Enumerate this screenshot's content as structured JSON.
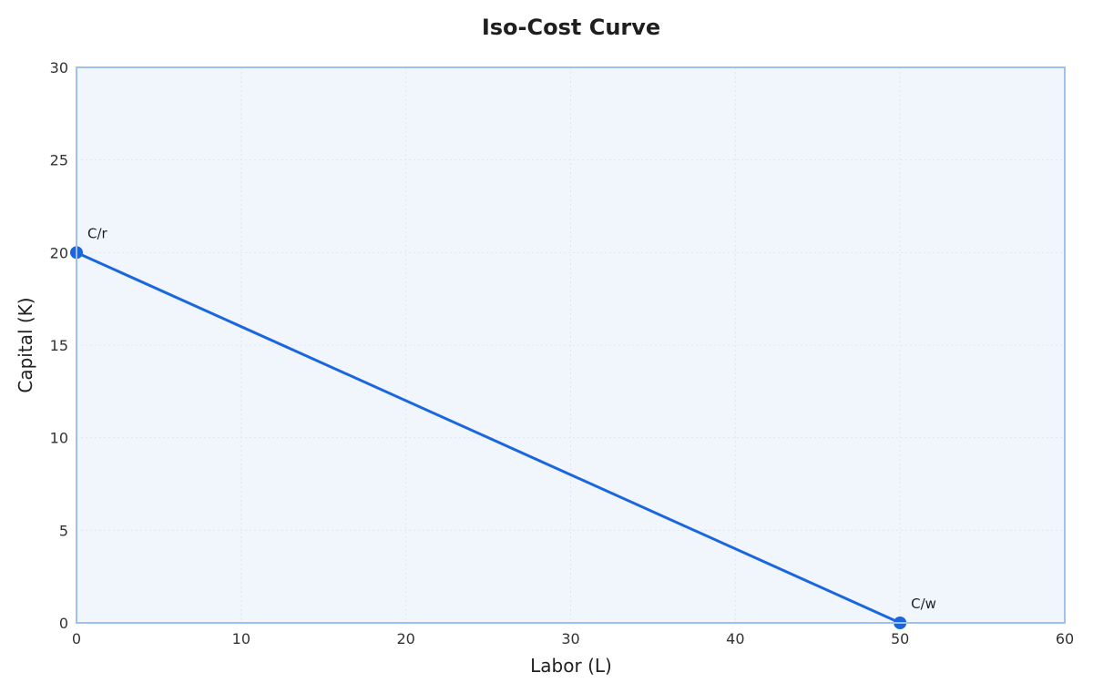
{
  "chart_data": {
    "type": "line",
    "title": "Iso-Cost Curve",
    "xlabel": "Labor (L)",
    "ylabel": "Capital (K)",
    "xlim": [
      0,
      60
    ],
    "ylim": [
      0,
      30
    ],
    "xticks": [
      0,
      10,
      20,
      30,
      40,
      50,
      60
    ],
    "yticks": [
      0,
      5,
      10,
      15,
      20,
      25,
      30
    ],
    "grid": true,
    "series": [
      {
        "x": [
          0,
          50
        ],
        "y": [
          20,
          0
        ],
        "color": "#1a66e0"
      }
    ],
    "points": [
      {
        "x": 0,
        "y": 20,
        "label": "C/r"
      },
      {
        "x": 50,
        "y": 0,
        "label": "C/w"
      }
    ],
    "colors": {
      "plot_background": "#f1f6fd",
      "plot_border": "#9ec1f0",
      "grid": "#dde6f3",
      "line": "#1a66e0"
    }
  }
}
